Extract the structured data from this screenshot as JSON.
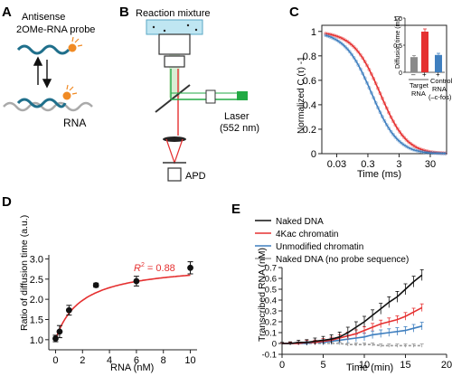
{
  "panels": {
    "A": {
      "letter": "A",
      "probe_label_line1": "Antisense",
      "probe_label_line2": "2OMe-RNA probe",
      "rna_label": "RNA"
    },
    "B": {
      "letter": "B",
      "title": "Reaction mixture",
      "laser_label": "Laser",
      "laser_wavelength": "(552 nm)",
      "detector_label": "APD"
    },
    "C": {
      "letter": "C",
      "ylabel": "Normalized C (τ) -1",
      "xlabel": "Time (ms)",
      "xticks": [
        "0.03",
        "0.3",
        "3",
        "30"
      ],
      "yticks": [
        "0",
        "0.2",
        "0.4",
        "0.6",
        "0.8",
        "1"
      ],
      "inset_ylabel": "Diffusion time (ms)",
      "inset_yticks": [
        "0",
        "0.5",
        "1.0"
      ],
      "inset_signs": [
        "–",
        "+",
        "+"
      ],
      "inset_group1_line1": "Target",
      "inset_group1_line2": "RNA",
      "inset_group2_line1": "Control",
      "inset_group2_line2": "RNA",
      "inset_group2_line3": "(–c-fos)"
    },
    "D": {
      "letter": "D",
      "annotation_r": "R",
      "annotation_sup": "2",
      "annotation_val": " = 0.88",
      "ylabel": "Ratio of diffusion time (a.u.)",
      "xlabel": "RNA (nM)",
      "xticks": [
        "0",
        "2",
        "4",
        "6",
        "8",
        "10"
      ],
      "yticks": [
        "1.0",
        "1.5",
        "2.0",
        "2.5",
        "3.0"
      ]
    },
    "E": {
      "letter": "E",
      "ylabel": "Transcribed RNA (nM)",
      "xlabel": "Time (min)",
      "xticks": [
        "0",
        "5",
        "10",
        "15",
        "20"
      ],
      "yticks": [
        "-0.1",
        "0",
        "0.1",
        "0.2",
        "0.3",
        "0.4",
        "0.5",
        "0.6",
        "0.7"
      ],
      "legend": [
        "Naked DNA",
        "4Kac chromatin",
        "Unmodified chromatin",
        "Naked DNA (no probe sequence)"
      ]
    }
  },
  "colors": {
    "red": "#e53030",
    "blue": "#3f7fbf",
    "black": "#111111",
    "gray": "#999999",
    "green": "#22aa44",
    "orange": "#f08a24",
    "teal": "#1f6f8b",
    "inset_gray": "#8a8a8a"
  },
  "chart_data": [
    {
      "panel": "C",
      "type": "line",
      "xlabel": "Time (ms)",
      "ylabel": "Normalized C (τ) -1",
      "xscale": "log",
      "xlim": [
        0.01,
        100
      ],
      "ylim": [
        0,
        1.05
      ],
      "series": [
        {
          "color": "red",
          "tau": 0.75,
          "x": [
            0.01,
            0.03,
            0.1,
            0.3,
            1,
            3,
            10,
            30,
            100
          ],
          "y": [
            1.0,
            0.98,
            0.93,
            0.8,
            0.52,
            0.24,
            0.08,
            0.02,
            0.0
          ]
        },
        {
          "color": "blue",
          "tau": 0.4,
          "x": [
            0.01,
            0.03,
            0.1,
            0.3,
            1,
            3,
            10,
            30,
            100
          ],
          "y": [
            0.99,
            0.97,
            0.88,
            0.65,
            0.31,
            0.09,
            0.02,
            0.0,
            0.0
          ]
        }
      ]
    },
    {
      "panel": "C-inset",
      "type": "bar",
      "ylabel": "Diffusion time (ms)",
      "ylim": [
        0,
        1.0
      ],
      "values": [
        0.28,
        0.75,
        0.32
      ],
      "errors": [
        0.03,
        0.05,
        0.03
      ],
      "colors": [
        "inset_gray",
        "red",
        "blue"
      ]
    },
    {
      "panel": "D",
      "type": "scatter",
      "xlabel": "RNA (nM)",
      "ylabel": "Ratio of diffusion time (a.u.)",
      "xlim": [
        -0.5,
        10.5
      ],
      "ylim": [
        0.75,
        3.1
      ],
      "x": [
        0,
        0.3,
        1,
        3,
        6,
        10
      ],
      "y": [
        1.03,
        1.2,
        1.73,
        2.35,
        2.45,
        2.78
      ],
      "errors": [
        0.08,
        0.15,
        0.12,
        0.05,
        0.12,
        0.15
      ],
      "fit": {
        "x": [
          0,
          0.5,
          1,
          2,
          3,
          4,
          5,
          6,
          7,
          8,
          9,
          10
        ],
        "y": [
          1.0,
          1.4,
          1.66,
          1.96,
          2.14,
          2.26,
          2.35,
          2.43,
          2.49,
          2.55,
          2.6,
          2.67
        ]
      }
    },
    {
      "panel": "E",
      "type": "line",
      "xlabel": "Time (min)",
      "ylabel": "Transcribed RNA (nM)",
      "xlim": [
        0,
        20
      ],
      "ylim": [
        -0.1,
        0.7
      ],
      "series": [
        {
          "name": "Naked DNA",
          "color": "black",
          "x": [
            0,
            1,
            2,
            3,
            4,
            5,
            6,
            7,
            8,
            9,
            10,
            11,
            12,
            13,
            14,
            15,
            16,
            17
          ],
          "y": [
            0.0,
            0.0,
            0.01,
            0.01,
            0.02,
            0.03,
            0.04,
            0.06,
            0.1,
            0.15,
            0.2,
            0.26,
            0.32,
            0.38,
            0.43,
            0.5,
            0.57,
            0.63
          ],
          "err": 0.05
        },
        {
          "name": "4Kac chromatin",
          "color": "red",
          "x": [
            0,
            1,
            2,
            3,
            4,
            5,
            6,
            7,
            8,
            9,
            10,
            11,
            12,
            13,
            14,
            15,
            16,
            17
          ],
          "y": [
            0.0,
            0.0,
            0.0,
            0.01,
            0.01,
            0.02,
            0.03,
            0.05,
            0.07,
            0.09,
            0.12,
            0.15,
            0.18,
            0.2,
            0.22,
            0.25,
            0.29,
            0.33
          ],
          "err": 0.035
        },
        {
          "name": "Unmodified chromatin",
          "color": "blue",
          "x": [
            0,
            1,
            2,
            3,
            4,
            5,
            6,
            7,
            8,
            9,
            10,
            11,
            12,
            13,
            14,
            15,
            16,
            17
          ],
          "y": [
            0.0,
            0.0,
            0.0,
            0.0,
            0.01,
            0.01,
            0.02,
            0.03,
            0.04,
            0.05,
            0.06,
            0.08,
            0.09,
            0.1,
            0.11,
            0.12,
            0.14,
            0.16
          ],
          "err": 0.035
        },
        {
          "name": "Naked DNA (no probe sequence)",
          "color": "gray",
          "x": [
            0,
            1,
            2,
            3,
            4,
            5,
            6,
            7,
            8,
            9,
            10,
            11,
            12,
            13,
            14,
            15,
            16,
            17
          ],
          "y": [
            0.0,
            0.0,
            0.0,
            0.0,
            0.0,
            0.0,
            0.0,
            0.0,
            -0.01,
            -0.01,
            -0.01,
            -0.01,
            -0.02,
            -0.02,
            -0.02,
            -0.02,
            -0.02,
            -0.02
          ],
          "err": 0.015
        }
      ]
    }
  ]
}
